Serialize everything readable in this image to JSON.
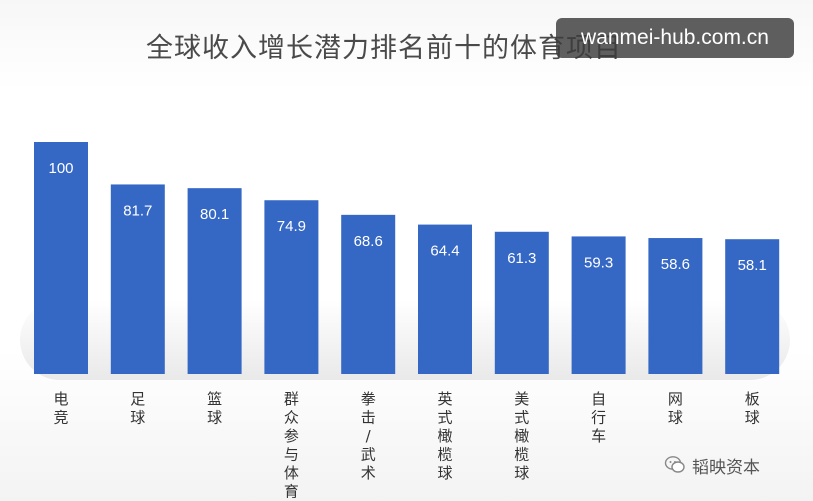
{
  "chart_data": {
    "type": "bar",
    "title": "全球收入增长潜力排名前十的体育项目",
    "categories": [
      "电竞",
      "足球",
      "篮球",
      "群众参与体育",
      "拳击/武术",
      "英式橄榄球",
      "美式橄榄球",
      "自行车",
      "网球",
      "板球"
    ],
    "values": [
      100,
      81.7,
      80.1,
      74.9,
      68.6,
      64.4,
      61.3,
      59.3,
      58.6,
      58.1
    ],
    "value_labels": [
      "100",
      "81.7",
      "80.1",
      "74.9",
      "68.6",
      "64.4",
      "61.3",
      "59.3",
      "58.6",
      "58.1"
    ],
    "ylim": [
      0,
      100
    ],
    "grid": false,
    "bar_color": "#3567c4"
  },
  "watermark": "wanmei-hub.com.cn",
  "source_badge": "韬映资本"
}
